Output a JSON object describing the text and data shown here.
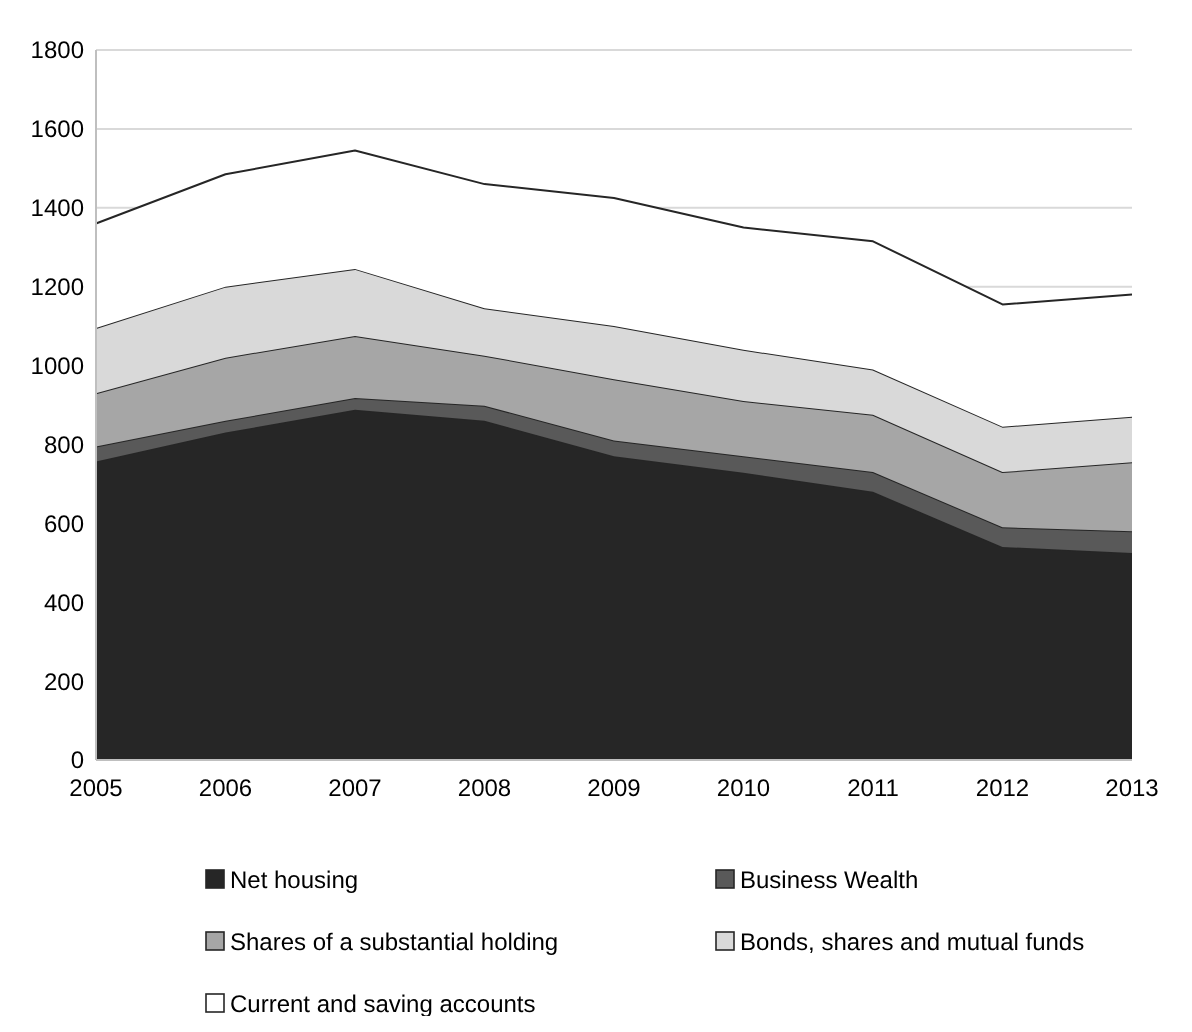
{
  "chart_data": {
    "type": "area",
    "stacked": true,
    "categories": [
      "2005",
      "2006",
      "2007",
      "2008",
      "2009",
      "2010",
      "2011",
      "2012",
      "2013"
    ],
    "series": [
      {
        "name": "Net housing",
        "color": "#262626",
        "values": [
          757,
          830,
          888,
          860,
          770,
          728,
          680,
          540,
          525
        ]
      },
      {
        "name": "Business Wealth",
        "color": "#595959",
        "values": [
          38,
          30,
          30,
          38,
          40,
          42,
          50,
          50,
          55
        ]
      },
      {
        "name": "Shares of a substantial holding",
        "color": "#a6a6a6",
        "values": [
          135,
          160,
          157,
          127,
          155,
          140,
          145,
          140,
          175
        ]
      },
      {
        "name": "Bonds, shares and mutual funds",
        "color": "#d9d9d9",
        "values": [
          165,
          180,
          170,
          120,
          135,
          130,
          115,
          115,
          115
        ]
      },
      {
        "name": "Current and saving accounts",
        "color": "#ffffff",
        "values": [
          265,
          285,
          300,
          315,
          325,
          310,
          325,
          310,
          310
        ]
      }
    ],
    "ylim": [
      0,
      1800
    ],
    "yticks": [
      0,
      200,
      400,
      600,
      800,
      1000,
      1200,
      1400,
      1600,
      1800
    ],
    "grid": "y",
    "legend": "bottom"
  }
}
